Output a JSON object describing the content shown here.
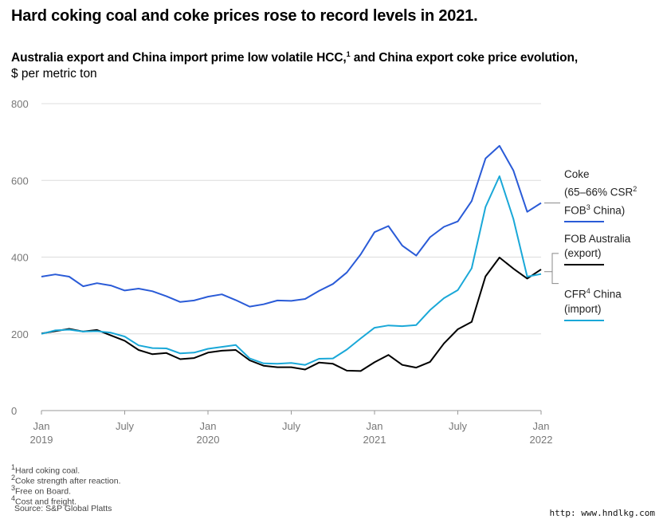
{
  "headline": "Hard coking coal and coke prices rose to record levels in 2021.",
  "subtitle": {
    "text": "Australia export and China import prime low volatile HCC,",
    "sup": "1",
    "text2": " and China export coke price evolution,",
    "unit": "$ per metric ton"
  },
  "chart_data": {
    "type": "line",
    "ylim": [
      0,
      800
    ],
    "yticks": [
      0,
      200,
      400,
      600,
      800
    ],
    "xticks": [
      {
        "label": "Jan",
        "year": "2019"
      },
      {
        "label": "July",
        "year": ""
      },
      {
        "label": "Jan",
        "year": "2020"
      },
      {
        "label": "July",
        "year": ""
      },
      {
        "label": "Jan",
        "year": "2021"
      },
      {
        "label": "July",
        "year": ""
      },
      {
        "label": "Jan",
        "year": "2022"
      }
    ],
    "x": [
      "2019-01",
      "2019-02",
      "2019-03",
      "2019-04",
      "2019-05",
      "2019-06",
      "2019-07",
      "2019-08",
      "2019-09",
      "2019-10",
      "2019-11",
      "2019-12",
      "2020-01",
      "2020-02",
      "2020-03",
      "2020-04",
      "2020-05",
      "2020-06",
      "2020-07",
      "2020-08",
      "2020-09",
      "2020-10",
      "2020-11",
      "2020-12",
      "2021-01",
      "2021-02",
      "2021-03",
      "2021-04",
      "2021-05",
      "2021-06",
      "2021-07",
      "2021-08",
      "2021-09",
      "2021-10",
      "2021-11",
      "2021-12",
      "2022-01"
    ],
    "series": [
      {
        "name": "Coke (65–66% CSR FOB China)",
        "color": "#2a5bd7",
        "values": [
          349,
          355,
          349,
          324,
          332,
          326,
          313,
          318,
          311,
          298,
          283,
          287,
          297,
          303,
          288,
          271,
          277,
          287,
          286,
          291,
          312,
          330,
          360,
          407,
          465,
          481,
          430,
          404,
          452,
          479,
          493,
          546,
          657,
          690,
          626,
          518,
          541
        ]
      },
      {
        "name": "FOB Australia (export)",
        "color": "#000000",
        "values": [
          201,
          207,
          213,
          206,
          210,
          196,
          182,
          158,
          147,
          150,
          134,
          137,
          151,
          156,
          158,
          131,
          117,
          113,
          113,
          107,
          125,
          122,
          104,
          103,
          126,
          145,
          119,
          112,
          127,
          175,
          212,
          231,
          350,
          399,
          370,
          344,
          368
        ]
      },
      {
        "name": "CFR China (import)",
        "color": "#1aa8d8",
        "values": [
          200,
          209,
          211,
          206,
          207,
          203,
          193,
          170,
          163,
          162,
          149,
          151,
          161,
          166,
          171,
          136,
          123,
          122,
          124,
          119,
          135,
          136,
          159,
          188,
          216,
          222,
          220,
          223,
          262,
          293,
          314,
          371,
          531,
          611,
          500,
          349,
          356
        ]
      }
    ],
    "grid": true,
    "legend_placement": "right"
  },
  "legend": {
    "coke": {
      "line1": "Coke",
      "line2a": "(65–66% CSR",
      "sup2": "2",
      "line3a": "FOB",
      "sup3": "3",
      "line3b": " China)"
    },
    "fob": {
      "line1": "FOB Australia",
      "line2": "(export)"
    },
    "cfr": {
      "line1a": "CFR",
      "sup4": "4",
      "line1b": " China",
      "line2": "(import)"
    }
  },
  "footnotes": {
    "f1": {
      "sup": "1",
      "text": "Hard coking coal."
    },
    "f2": {
      "sup": "2",
      "text": "Coke strength after reaction."
    },
    "f3": {
      "sup": "3",
      "text": "Free on Board."
    },
    "f4": {
      "sup": "4",
      "text": "Cost and freight."
    },
    "source": "Source: S&P Global Platts"
  },
  "watermark": "http: www.hndlkg.com"
}
